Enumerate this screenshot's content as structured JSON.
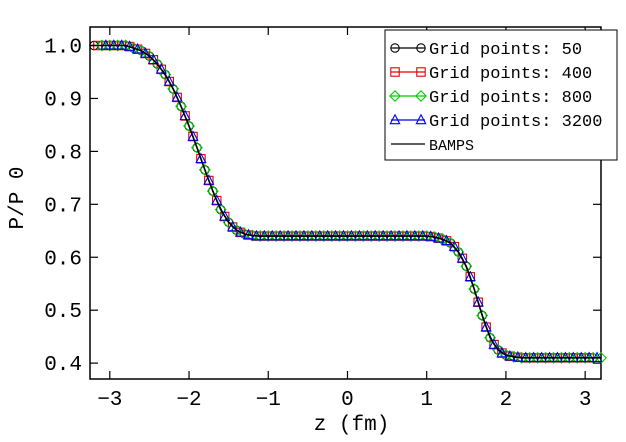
{
  "chart_data": {
    "type": "line",
    "title": "",
    "xlabel": "z (fm)",
    "ylabel": "P/P 0",
    "xlim": [
      -3.25,
      3.2
    ],
    "ylim": [
      0.37,
      1.035
    ],
    "xticks": [
      -3,
      -2,
      -1,
      0,
      1,
      2,
      3
    ],
    "xtick_labels": [
      "−3",
      "−2",
      "−1",
      "0",
      "1",
      "2",
      "3"
    ],
    "yticks": [
      0.4,
      0.5,
      0.6,
      0.7,
      0.8,
      0.9,
      1.0
    ],
    "ytick_labels": [
      "0.4",
      "0.5",
      "0.6",
      "0.7",
      "0.8",
      "0.9",
      "1.0"
    ],
    "grid": false,
    "legend_position": "top-right",
    "series": [
      {
        "name": "Grid points: 50",
        "color": "#000000",
        "marker": "circle",
        "x": [
          -3.2,
          -3.1,
          -3.0,
          -2.9,
          -2.8,
          -2.7,
          -2.6,
          -2.5,
          -2.4,
          -2.3,
          -2.2,
          -2.1,
          -2.0,
          -1.9,
          -1.8,
          -1.7,
          -1.6,
          -1.5,
          -1.4,
          -1.3,
          -1.2,
          -1.1,
          -1.0,
          -0.9,
          -0.8,
          -0.7,
          -0.6,
          -0.5,
          -0.4,
          -0.3,
          -0.2,
          -0.1,
          0.0,
          0.1,
          0.2,
          0.3,
          0.4,
          0.5,
          0.6,
          0.7,
          0.8,
          0.9,
          1.0,
          1.1,
          1.2,
          1.3,
          1.4,
          1.5,
          1.6,
          1.7,
          1.8,
          1.9,
          2.0,
          2.1,
          2.2,
          2.3,
          2.4,
          2.5,
          2.6,
          2.7,
          2.8,
          2.9,
          3.0,
          3.1
        ],
        "y": [
          1.0,
          1.0,
          1.0,
          1.0,
          1.0,
          0.995,
          0.99,
          0.98,
          0.965,
          0.945,
          0.918,
          0.885,
          0.848,
          0.807,
          0.765,
          0.725,
          0.69,
          0.666,
          0.651,
          0.644,
          0.641,
          0.64,
          0.64,
          0.64,
          0.64,
          0.64,
          0.64,
          0.64,
          0.64,
          0.64,
          0.64,
          0.64,
          0.64,
          0.64,
          0.64,
          0.64,
          0.64,
          0.64,
          0.64,
          0.64,
          0.64,
          0.64,
          0.64,
          0.638,
          0.634,
          0.627,
          0.61,
          0.583,
          0.54,
          0.49,
          0.448,
          0.425,
          0.415,
          0.412,
          0.41,
          0.41,
          0.41,
          0.41,
          0.41,
          0.41,
          0.41,
          0.41,
          0.41,
          0.41
        ]
      },
      {
        "name": "Grid points: 400",
        "color": "#e00000",
        "marker": "square",
        "x": [
          -3.15,
          -3.05,
          -2.95,
          -2.85,
          -2.75,
          -2.65,
          -2.55,
          -2.45,
          -2.35,
          -2.25,
          -2.15,
          -2.05,
          -1.95,
          -1.85,
          -1.75,
          -1.65,
          -1.55,
          -1.45,
          -1.35,
          -1.25,
          -1.15,
          -1.05,
          -0.95,
          -0.85,
          -0.75,
          -0.65,
          -0.55,
          -0.45,
          -0.35,
          -0.25,
          -0.15,
          -0.05,
          0.05,
          0.15,
          0.25,
          0.35,
          0.45,
          0.55,
          0.65,
          0.75,
          0.85,
          0.95,
          1.05,
          1.15,
          1.25,
          1.35,
          1.45,
          1.55,
          1.65,
          1.75,
          1.85,
          1.95,
          2.05,
          2.15,
          2.25,
          2.35,
          2.45,
          2.55,
          2.65,
          2.75,
          2.85,
          2.95,
          3.05
        ],
        "y": [
          1.0,
          1.0,
          1.0,
          1.0,
          0.998,
          0.993,
          0.985,
          0.973,
          0.955,
          0.932,
          0.902,
          0.867,
          0.828,
          0.786,
          0.745,
          0.707,
          0.677,
          0.657,
          0.647,
          0.642,
          0.64,
          0.64,
          0.64,
          0.64,
          0.64,
          0.64,
          0.64,
          0.64,
          0.64,
          0.64,
          0.64,
          0.64,
          0.64,
          0.64,
          0.64,
          0.64,
          0.64,
          0.64,
          0.64,
          0.64,
          0.64,
          0.64,
          0.639,
          0.636,
          0.631,
          0.62,
          0.598,
          0.563,
          0.515,
          0.468,
          0.435,
          0.419,
          0.413,
          0.411,
          0.41,
          0.41,
          0.41,
          0.41,
          0.41,
          0.41,
          0.41,
          0.41,
          0.41
        ]
      },
      {
        "name": "Grid points: 800",
        "color": "#00cc00",
        "marker": "diamond",
        "x": [
          -3.1,
          -3.0,
          -2.9,
          -2.8,
          -2.7,
          -2.6,
          -2.5,
          -2.4,
          -2.3,
          -2.2,
          -2.1,
          -2.0,
          -1.9,
          -1.8,
          -1.7,
          -1.6,
          -1.5,
          -1.4,
          -1.3,
          -1.2,
          -1.1,
          -1.0,
          -0.9,
          -0.8,
          -0.7,
          -0.6,
          -0.5,
          -0.4,
          -0.3,
          -0.2,
          -0.1,
          0.0,
          0.1,
          0.2,
          0.3,
          0.4,
          0.5,
          0.6,
          0.7,
          0.8,
          0.9,
          1.0,
          1.1,
          1.2,
          1.3,
          1.4,
          1.5,
          1.6,
          1.7,
          1.8,
          1.9,
          2.0,
          2.1,
          2.2,
          2.3,
          2.4,
          2.5,
          2.6,
          2.7,
          2.8,
          2.9,
          3.0,
          3.1,
          3.2
        ],
        "y": [
          1.0,
          1.0,
          1.0,
          1.0,
          0.995,
          0.99,
          0.98,
          0.965,
          0.945,
          0.918,
          0.885,
          0.848,
          0.807,
          0.765,
          0.725,
          0.69,
          0.666,
          0.651,
          0.644,
          0.641,
          0.64,
          0.64,
          0.64,
          0.64,
          0.64,
          0.64,
          0.64,
          0.64,
          0.64,
          0.64,
          0.64,
          0.64,
          0.64,
          0.64,
          0.64,
          0.64,
          0.64,
          0.64,
          0.64,
          0.64,
          0.64,
          0.64,
          0.638,
          0.634,
          0.627,
          0.61,
          0.583,
          0.54,
          0.49,
          0.448,
          0.425,
          0.415,
          0.412,
          0.41,
          0.41,
          0.41,
          0.41,
          0.41,
          0.41,
          0.41,
          0.41,
          0.41,
          0.41,
          0.41
        ]
      },
      {
        "name": "Grid points: 3200",
        "color": "#0000ee",
        "marker": "triangle",
        "x": [
          -3.05,
          -2.95,
          -2.85,
          -2.75,
          -2.65,
          -2.55,
          -2.45,
          -2.35,
          -2.25,
          -2.15,
          -2.05,
          -1.95,
          -1.85,
          -1.75,
          -1.65,
          -1.55,
          -1.45,
          -1.35,
          -1.25,
          -1.15,
          -1.05,
          -0.95,
          -0.85,
          -0.75,
          -0.65,
          -0.55,
          -0.45,
          -0.35,
          -0.25,
          -0.15,
          -0.05,
          0.05,
          0.15,
          0.25,
          0.35,
          0.45,
          0.55,
          0.65,
          0.75,
          0.85,
          0.95,
          1.05,
          1.15,
          1.25,
          1.35,
          1.45,
          1.55,
          1.65,
          1.75,
          1.85,
          1.95,
          2.05,
          2.15,
          2.25,
          2.35,
          2.45,
          2.55,
          2.65,
          2.75,
          2.85,
          2.95,
          3.05,
          3.15
        ],
        "y": [
          1.0,
          1.0,
          1.0,
          0.998,
          0.993,
          0.985,
          0.973,
          0.955,
          0.932,
          0.902,
          0.867,
          0.828,
          0.786,
          0.745,
          0.707,
          0.677,
          0.657,
          0.647,
          0.642,
          0.64,
          0.64,
          0.64,
          0.64,
          0.64,
          0.64,
          0.64,
          0.64,
          0.64,
          0.64,
          0.64,
          0.64,
          0.64,
          0.64,
          0.64,
          0.64,
          0.64,
          0.64,
          0.64,
          0.64,
          0.64,
          0.64,
          0.639,
          0.636,
          0.631,
          0.62,
          0.598,
          0.563,
          0.515,
          0.468,
          0.435,
          0.419,
          0.413,
          0.411,
          0.41,
          0.41,
          0.41,
          0.41,
          0.41,
          0.41,
          0.41,
          0.41,
          0.41,
          0.41
        ]
      },
      {
        "name": "BAMPS",
        "color": "#000000",
        "marker": "none",
        "x": [
          -3.25,
          -3.0,
          -2.8,
          -2.6,
          -2.5,
          -2.4,
          -2.3,
          -2.2,
          -2.1,
          -2.0,
          -1.9,
          -1.8,
          -1.7,
          -1.6,
          -1.5,
          -1.4,
          -1.3,
          -1.2,
          -1.1,
          -1.0,
          -0.5,
          0.0,
          0.5,
          0.9,
          1.0,
          1.1,
          1.2,
          1.3,
          1.4,
          1.5,
          1.6,
          1.7,
          1.8,
          1.9,
          2.0,
          2.1,
          2.2,
          2.4,
          2.6,
          2.8,
          3.0,
          3.2
        ],
        "y": [
          1.0,
          1.0,
          1.0,
          0.99,
          0.98,
          0.965,
          0.945,
          0.918,
          0.885,
          0.848,
          0.807,
          0.765,
          0.725,
          0.69,
          0.666,
          0.651,
          0.644,
          0.641,
          0.64,
          0.64,
          0.64,
          0.64,
          0.64,
          0.64,
          0.64,
          0.638,
          0.634,
          0.627,
          0.61,
          0.583,
          0.54,
          0.49,
          0.448,
          0.425,
          0.415,
          0.412,
          0.41,
          0.41,
          0.41,
          0.41,
          0.41,
          0.41
        ]
      }
    ]
  }
}
